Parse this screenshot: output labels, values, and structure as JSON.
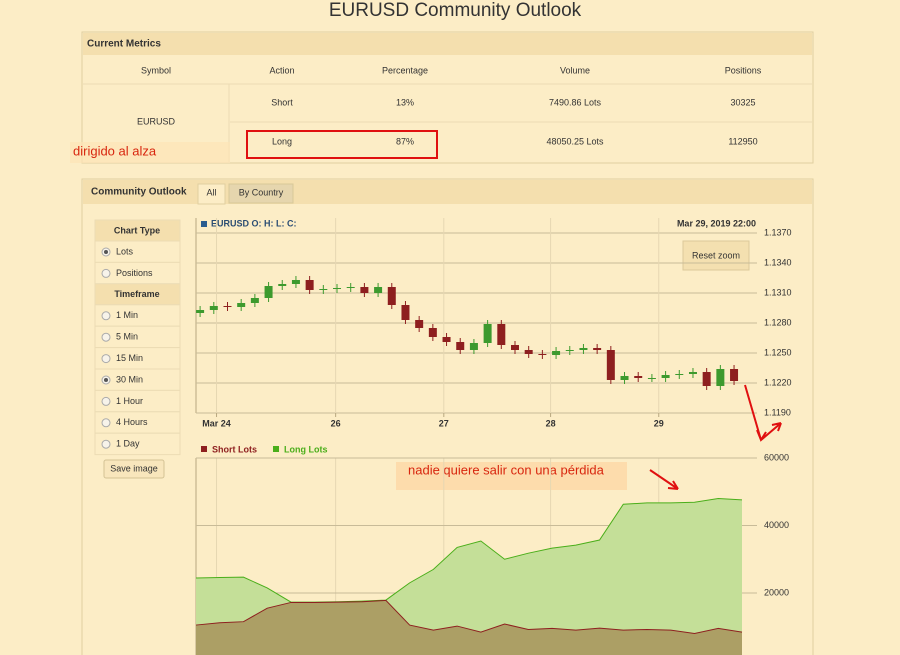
{
  "title": "EURUSD Community Outlook",
  "metrics": {
    "heading": "Current Metrics",
    "columns": [
      "Symbol",
      "Action",
      "Percentage",
      "Volume",
      "Positions"
    ],
    "symbol": "EURUSD",
    "rows": [
      [
        "Short",
        "13%",
        "7490.86 Lots",
        "30325"
      ],
      [
        "Long",
        "87%",
        "48050.25 Lots",
        "112950"
      ]
    ]
  },
  "annotations": [
    "dirigido al alza",
    "nadie quiere salir con una pérdida"
  ],
  "outlook": {
    "heading": "Community Outlook",
    "tabs": [
      "All",
      "By Country"
    ],
    "chart_type": {
      "label": "Chart Type",
      "options": [
        "Lots",
        "Positions"
      ],
      "selected": 0
    },
    "timeframe": {
      "label": "Timeframe",
      "options": [
        "1 Min",
        "5 Min",
        "15 Min",
        "30 Min",
        "1 Hour",
        "4 Hours",
        "1 Day"
      ],
      "selected": 3
    },
    "save": "Save image"
  },
  "chart_data": [
    {
      "type": "candlestick",
      "title": "EURUSD O: H: L: C:",
      "date": "Mar 29, 2019 22:00",
      "button": "Reset zoom",
      "up_color": "#3d9a2e",
      "down_color": "#8e1f1f",
      "grid": true,
      "open": [
        1.129,
        1.1293,
        1.1297,
        1.1296,
        1.13,
        1.1305,
        1.1317,
        1.1319,
        1.1323,
        1.1313,
        1.1314,
        1.1315,
        1.1316,
        1.131,
        1.1316,
        1.1298,
        1.1283,
        1.1275,
        1.1266,
        1.1261,
        1.1253,
        1.126,
        1.1279,
        1.1258,
        1.1253,
        1.1249,
        1.1248,
        1.1252,
        1.1253,
        1.1255,
        1.1253,
        1.1223,
        1.1227,
        1.1225,
        1.1225,
        1.1228,
        1.1229,
        1.1231,
        1.1217,
        1.1234
      ],
      "high": [
        1.1297,
        1.1301,
        1.1301,
        1.1304,
        1.1309,
        1.1321,
        1.1323,
        1.1327,
        1.1327,
        1.1318,
        1.1319,
        1.132,
        1.132,
        1.132,
        1.132,
        1.1302,
        1.1287,
        1.1279,
        1.127,
        1.1265,
        1.1264,
        1.1283,
        1.1283,
        1.1262,
        1.1257,
        1.1253,
        1.1256,
        1.1257,
        1.1259,
        1.1259,
        1.1257,
        1.1231,
        1.1231,
        1.1229,
        1.1232,
        1.1233,
        1.1235,
        1.1235,
        1.1238,
        1.1238
      ],
      "low": [
        1.1286,
        1.1289,
        1.1292,
        1.1292,
        1.1296,
        1.1301,
        1.1313,
        1.1315,
        1.1309,
        1.1309,
        1.131,
        1.1311,
        1.1306,
        1.1306,
        1.1294,
        1.1279,
        1.1271,
        1.1262,
        1.1257,
        1.1249,
        1.1249,
        1.1256,
        1.1254,
        1.1249,
        1.1245,
        1.1244,
        1.1244,
        1.1248,
        1.1249,
        1.1249,
        1.1219,
        1.1219,
        1.1221,
        1.1221,
        1.1221,
        1.1224,
        1.1225,
        1.1213,
        1.1213,
        1.1218
      ],
      "close": [
        1.1293,
        1.1297,
        1.1296,
        1.13,
        1.1305,
        1.1317,
        1.1319,
        1.1323,
        1.1313,
        1.1314,
        1.1315,
        1.1316,
        1.131,
        1.1316,
        1.1298,
        1.1283,
        1.1275,
        1.1266,
        1.1261,
        1.1253,
        1.126,
        1.1279,
        1.1258,
        1.1253,
        1.1249,
        1.1248,
        1.1252,
        1.1253,
        1.1255,
        1.1253,
        1.1223,
        1.1227,
        1.1225,
        1.1225,
        1.1228,
        1.1229,
        1.1231,
        1.1217,
        1.1234,
        1.1222
      ],
      "xlim": [
        -0.3,
        39.8
      ],
      "xticks": [
        {
          "value": 1.2,
          "label": "Mar 24"
        },
        {
          "value": 9.9,
          "label": "26"
        },
        {
          "value": 17.8,
          "label": "27"
        },
        {
          "value": 25.6,
          "label": "28"
        },
        {
          "value": 33.5,
          "label": "29"
        }
      ],
      "ylim": [
        1.119,
        1.1385
      ],
      "yticks": [
        {
          "value": 1.119,
          "label": "1.1190"
        },
        {
          "value": 1.122,
          "label": "1.1220"
        },
        {
          "value": 1.125,
          "label": "1.1250"
        },
        {
          "value": 1.128,
          "label": "1.1280"
        },
        {
          "value": 1.131,
          "label": "1.1310"
        },
        {
          "value": 1.134,
          "label": "1.1340"
        },
        {
          "value": 1.137,
          "label": "1.1370"
        }
      ]
    },
    {
      "type": "area",
      "grid": true,
      "series": [
        {
          "name": "Short Lots",
          "color": "#8e1f1f",
          "fill": "#a8945c",
          "values": [
            10500,
            11200,
            11500,
            15500,
            17200,
            17200,
            17300,
            17400,
            17800,
            10500,
            9000,
            10200,
            8400,
            10800,
            9200,
            9500,
            9000,
            9600,
            9000,
            9200,
            9000,
            8000,
            9500,
            8400
          ]
        },
        {
          "name": "Long Lots",
          "color": "#4aae1a",
          "fill": "#c4df98",
          "values": [
            24450,
            24600,
            24700,
            21500,
            17300,
            17300,
            17400,
            17600,
            17900,
            23000,
            27000,
            33500,
            35400,
            30000,
            31800,
            33300,
            34200,
            35700,
            46300,
            46700,
            46700,
            46900,
            48000,
            47600
          ]
        }
      ],
      "ylim": [
        0,
        60000
      ],
      "yticks": [
        20000,
        40000,
        60000
      ]
    }
  ]
}
